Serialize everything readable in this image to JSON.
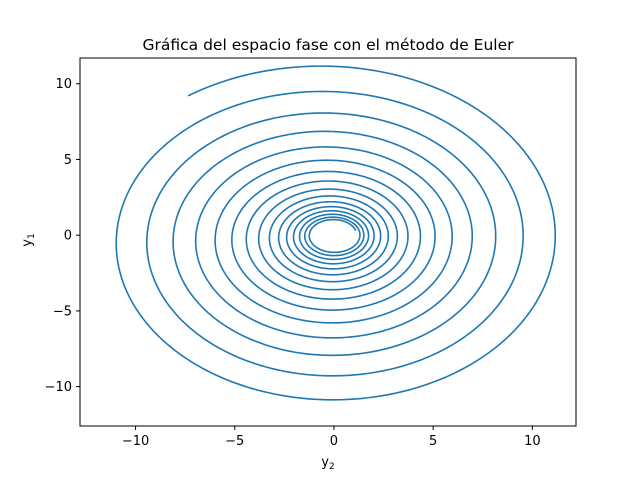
{
  "chart_data": {
    "type": "line",
    "title": "Gráfica del espacio fase con el método de Euler",
    "xlabel": {
      "base": "y",
      "sub": "2"
    },
    "ylabel": {
      "base": "y",
      "sub": "1"
    },
    "xlim": [
      -12.8,
      12.2
    ],
    "ylim": [
      -12.6,
      11.7
    ],
    "xticks": [
      -10,
      -5,
      0,
      5,
      10
    ],
    "xtick_labels": [
      "−10",
      "−5",
      "0",
      "5",
      "10"
    ],
    "yticks": [
      -10,
      -5,
      0,
      5,
      10
    ],
    "ytick_labels": [
      "−10",
      "−5",
      "0",
      "5",
      "10"
    ],
    "grid": false,
    "series": [
      {
        "color": "#1f77b4",
        "spiral": {
          "center": [
            0,
            0
          ],
          "start_point": [
            -7.0,
            9.9
          ],
          "inner_radius_x": 1.15,
          "inner_radius_y": 1.0,
          "turns": 15.3
        },
        "crossings": {
          "y_axis_positive": [
            10.5,
            9.0,
            7.7,
            6.6,
            5.7,
            4.8,
            4.1,
            3.5,
            3.0,
            2.6,
            2.2,
            1.9,
            1.6,
            1.4,
            1.2
          ],
          "y_axis_negative": [
            -11.4,
            -9.8,
            -8.4,
            -7.1,
            -6.1,
            -5.2,
            -4.4,
            -3.8,
            -3.2,
            -2.7,
            -2.3,
            -2.0,
            -1.7,
            -1.45,
            -1.25
          ],
          "x_axis_positive": [
            11.0,
            9.4,
            8.0,
            6.9,
            5.9,
            5.0,
            4.3,
            3.7,
            3.1,
            2.7,
            2.3,
            2.0,
            1.7,
            1.45,
            1.25
          ],
          "x_axis_negative": [
            -11.9,
            -10.2,
            -8.7,
            -7.4,
            -6.3,
            -5.4,
            -4.6,
            -4.0,
            -3.4,
            -2.9,
            -2.5,
            -2.1,
            -1.8,
            -1.55,
            -1.3
          ]
        }
      }
    ]
  }
}
